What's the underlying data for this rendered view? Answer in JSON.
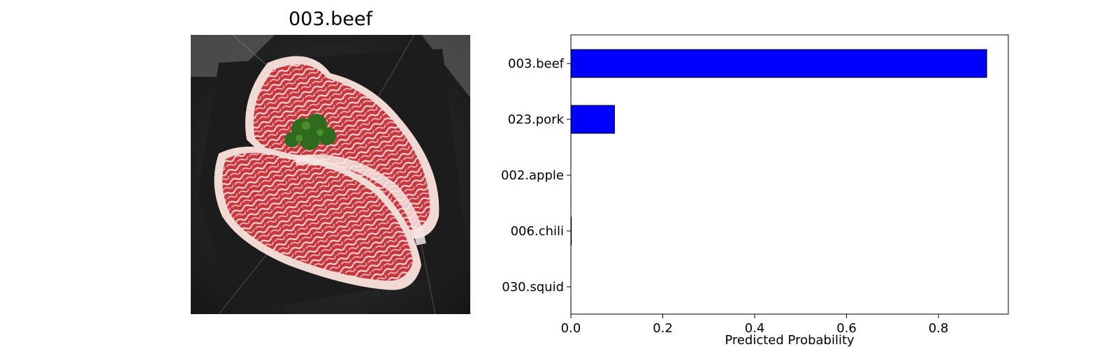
{
  "image_panel": {
    "title": "003.beef",
    "image_icon": "photo-of-marbled-beef-steaks-on-black-plate"
  },
  "chart_data": {
    "type": "bar",
    "orientation": "horizontal",
    "categories": [
      "003.beef",
      "023.pork",
      "002.apple",
      "006.chili",
      "030.squid"
    ],
    "values": [
      0.905,
      0.095,
      0.0,
      0.001,
      0.0
    ],
    "xlabel": "Predicted Probability",
    "ylabel": "",
    "xlim": [
      0,
      0.952
    ],
    "xticks": [
      0.0,
      0.2,
      0.4,
      0.6,
      0.8
    ],
    "xtick_labels": [
      "0.0",
      "0.2",
      "0.4",
      "0.6",
      "0.8"
    ],
    "bar_color": "#0000ff",
    "bar_edge_color": "#000000",
    "grid": false
  }
}
